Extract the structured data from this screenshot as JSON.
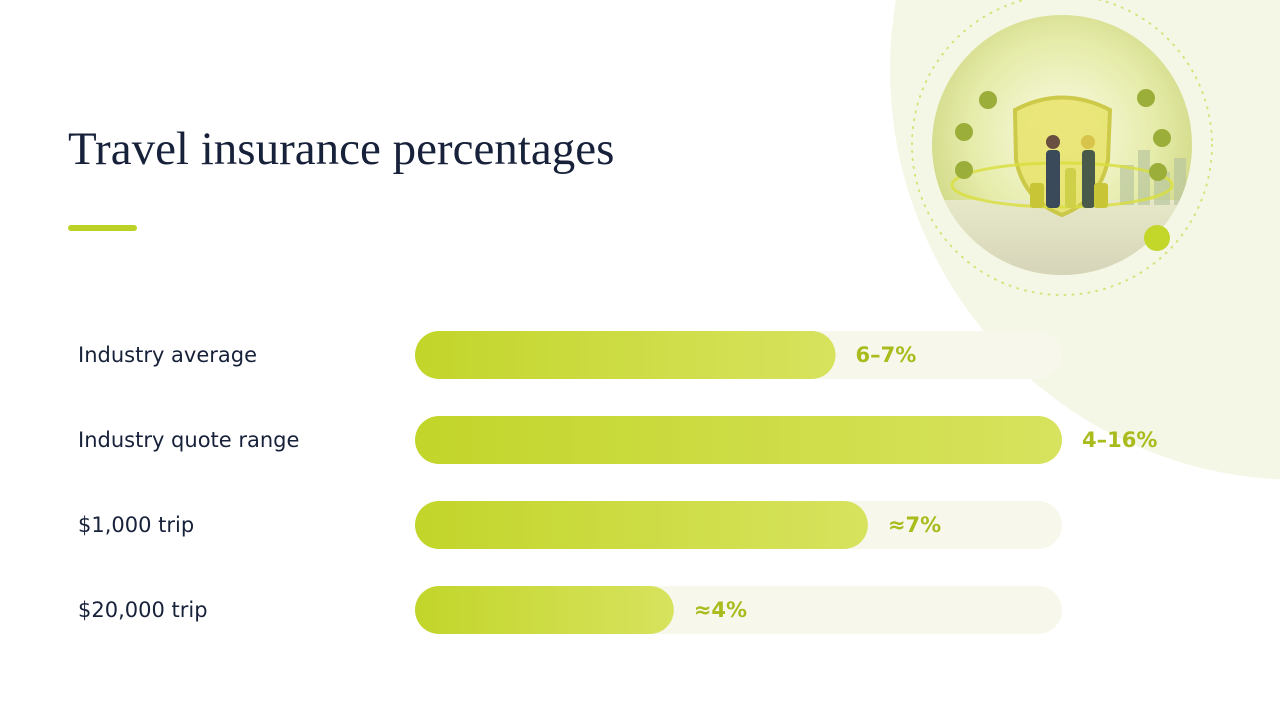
{
  "chart_data": {
    "type": "bar",
    "orientation": "horizontal",
    "title": "Travel insurance percentages",
    "categories": [
      "Industry average",
      "Industry quote range",
      "$1,000 trip",
      "$20,000 trip"
    ],
    "values": [
      6.5,
      10,
      7,
      4
    ],
    "value_labels": [
      "6–7%",
      "4–16%",
      "≈7%",
      "≈4%"
    ],
    "color": "#c5d82c",
    "xlim": [
      0,
      10
    ]
  }
}
